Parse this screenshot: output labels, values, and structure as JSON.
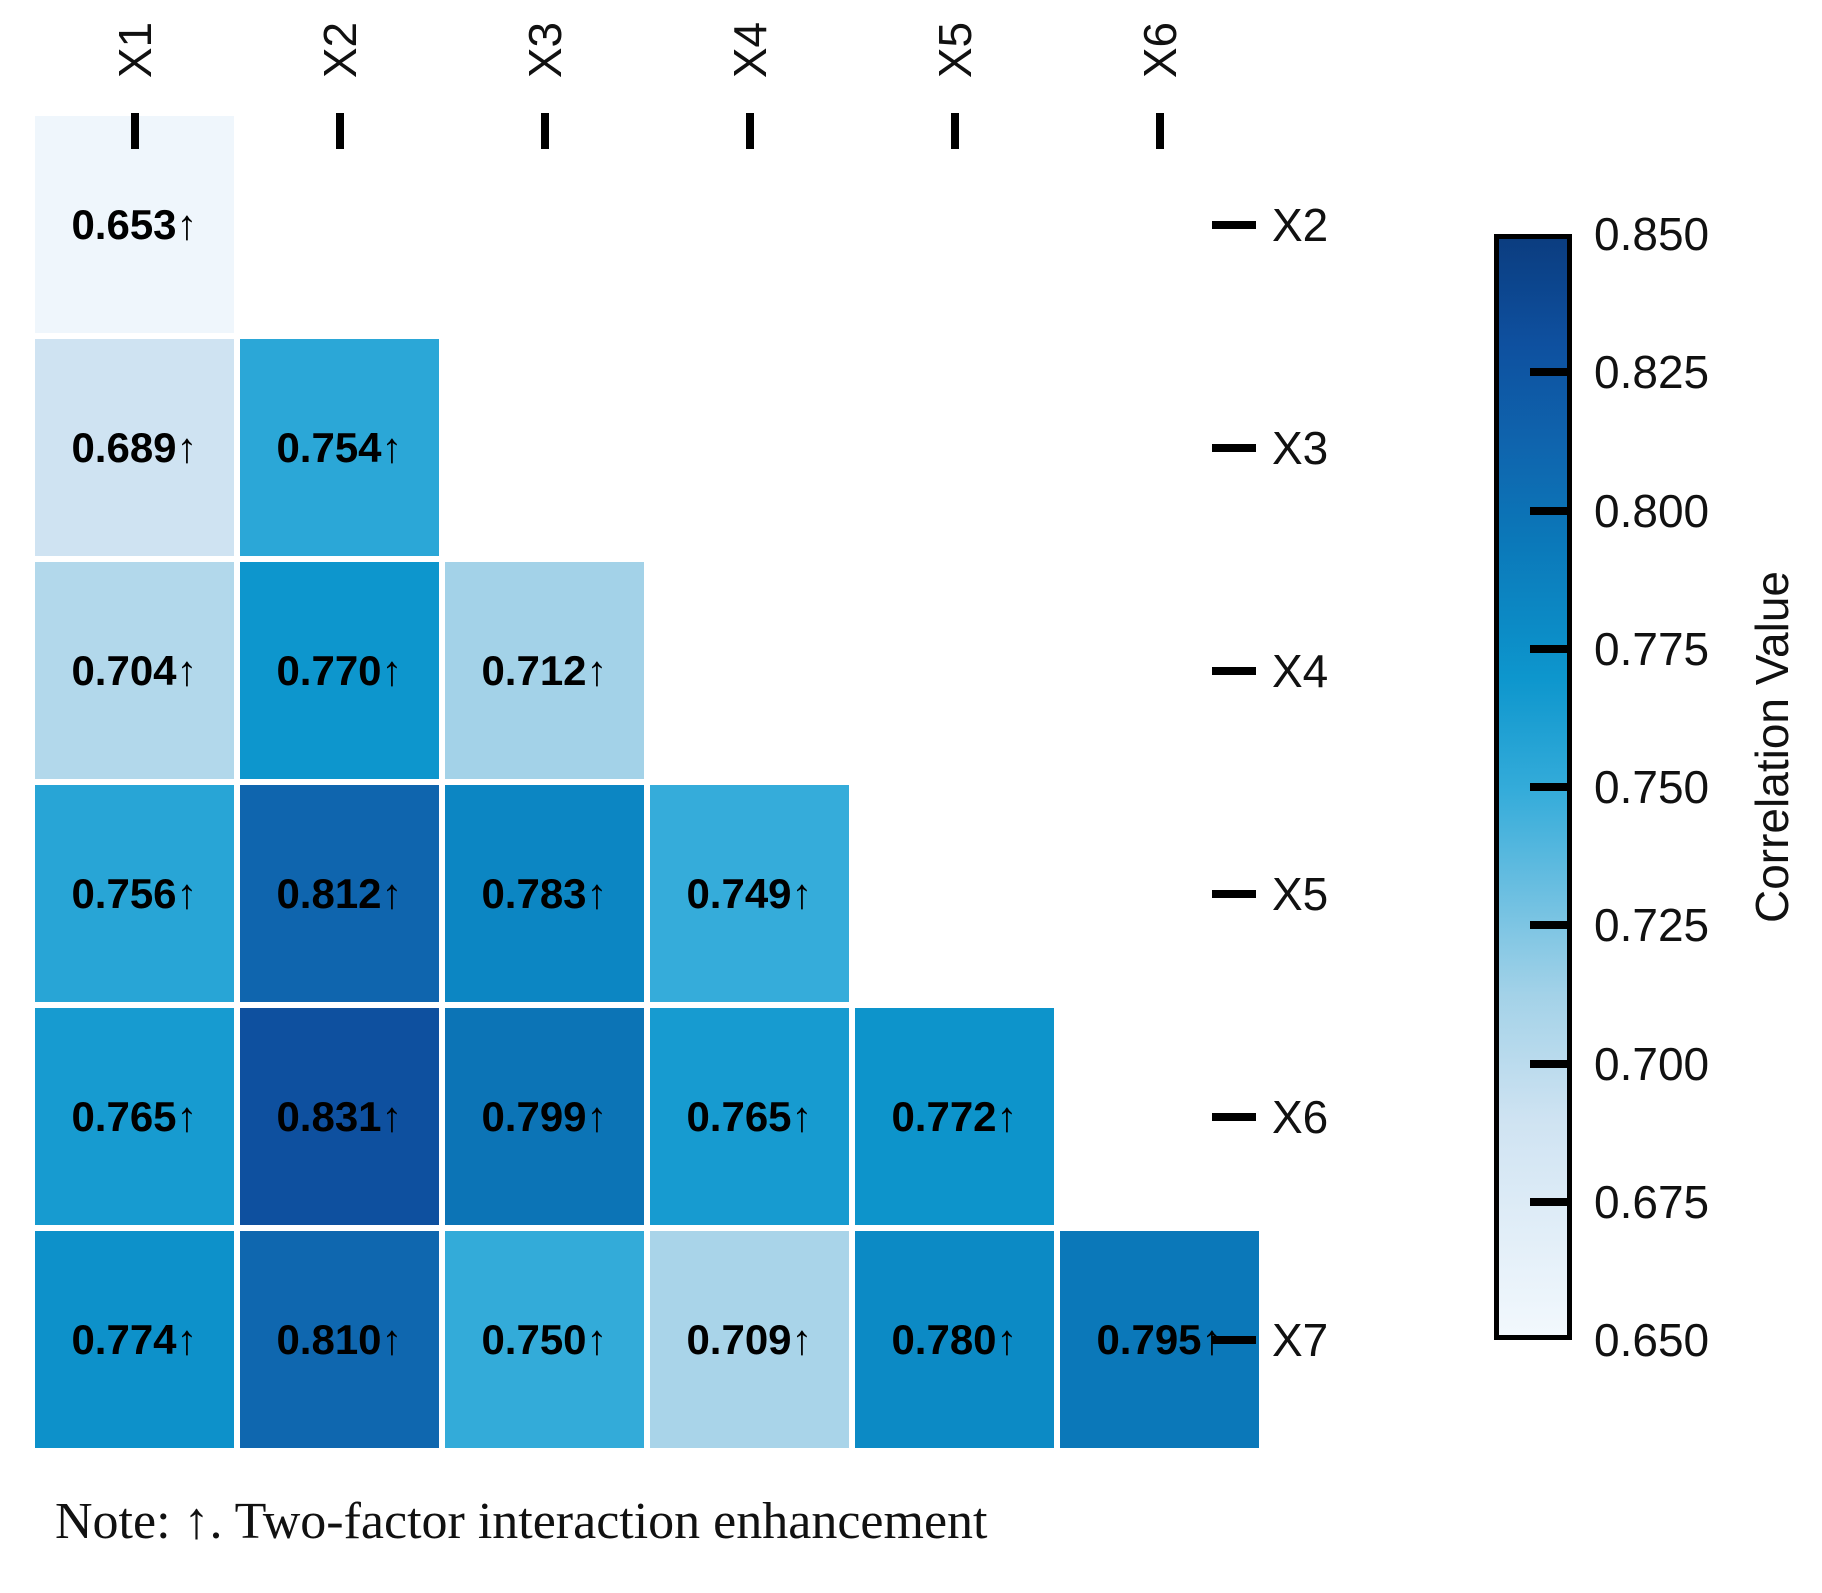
{
  "chart_data": {
    "type": "heatmap",
    "title": "",
    "x_labels": [
      "X1",
      "X2",
      "X3",
      "X4",
      "X5",
      "X6"
    ],
    "y_labels": [
      "X2",
      "X3",
      "X4",
      "X5",
      "X6",
      "X7"
    ],
    "values": [
      [
        0.653,
        null,
        null,
        null,
        null,
        null
      ],
      [
        0.689,
        0.754,
        null,
        null,
        null,
        null
      ],
      [
        0.704,
        0.77,
        0.712,
        null,
        null,
        null
      ],
      [
        0.756,
        0.812,
        0.783,
        0.749,
        null,
        null
      ],
      [
        0.765,
        0.831,
        0.799,
        0.765,
        0.772,
        null
      ],
      [
        0.774,
        0.81,
        0.75,
        0.709,
        0.78,
        0.795
      ]
    ],
    "value_decimals": 3,
    "cell_suffix": "↑",
    "colorbar": {
      "label": "Correlation Value",
      "vmin": 0.65,
      "vmax": 0.85,
      "tick_labels": [
        "0.850",
        "0.825",
        "0.800",
        "0.775",
        "0.750",
        "0.725",
        "0.700",
        "0.675",
        "0.650"
      ]
    },
    "colormap_anchors": [
      {
        "v": 0.65,
        "c": "#f2f8fd"
      },
      {
        "v": 0.689,
        "c": "#cfe3f2"
      },
      {
        "v": 0.712,
        "c": "#a3d2e8"
      },
      {
        "v": 0.749,
        "c": "#35acda"
      },
      {
        "v": 0.77,
        "c": "#0d96cd"
      },
      {
        "v": 0.795,
        "c": "#0b78b9"
      },
      {
        "v": 0.812,
        "c": "#0f65ae"
      },
      {
        "v": 0.831,
        "c": "#0e509f"
      },
      {
        "v": 0.85,
        "c": "#0b3d80"
      }
    ],
    "layout_hints": {
      "grid": false,
      "legend_position": "right-colorbar",
      "triangle": "lower"
    }
  },
  "note": "Note: ↑. Two-factor interaction enhancement",
  "text_color": "#000000",
  "background_color": "#ffffff"
}
